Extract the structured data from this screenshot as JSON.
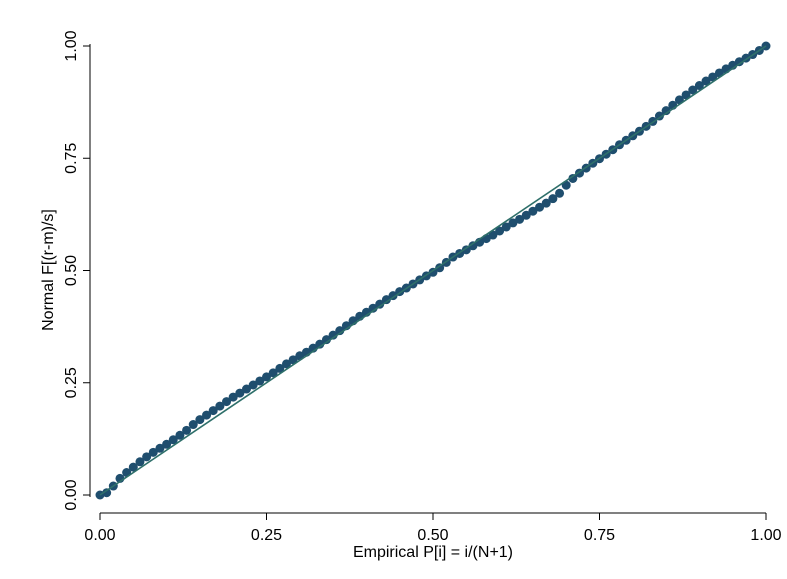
{
  "chart_data": {
    "type": "scatter",
    "title": "",
    "xlabel": "Empirical P[i] = i/(N+1)",
    "ylabel": "Normal F[(r-m)/s]",
    "xlim": [
      0,
      1
    ],
    "ylim": [
      0,
      1
    ],
    "x_ticks": [
      0,
      0.25,
      0.5,
      0.75,
      1
    ],
    "x_tick_labels": [
      "0.00",
      "0.25",
      "0.50",
      "0.75",
      "1.00"
    ],
    "y_ticks": [
      0,
      0.25,
      0.5,
      0.75,
      1
    ],
    "y_tick_labels": [
      "0.00",
      "0.25",
      "0.50",
      "0.75",
      "1.00"
    ],
    "grid": false,
    "legend": "none",
    "reference_line": {
      "x": [
        0,
        1
      ],
      "y": [
        0,
        1
      ],
      "color": "#2e6f6a"
    },
    "series": [
      {
        "marker_color": "#1f4e6e",
        "x": [
          0.0,
          0.01,
          0.02,
          0.03,
          0.04,
          0.05,
          0.06,
          0.07,
          0.08,
          0.09,
          0.1,
          0.11,
          0.12,
          0.13,
          0.14,
          0.15,
          0.16,
          0.17,
          0.18,
          0.19,
          0.2,
          0.21,
          0.22,
          0.23,
          0.24,
          0.25,
          0.26,
          0.27,
          0.28,
          0.29,
          0.3,
          0.31,
          0.32,
          0.33,
          0.34,
          0.35,
          0.36,
          0.37,
          0.38,
          0.39,
          0.4,
          0.41,
          0.42,
          0.43,
          0.44,
          0.45,
          0.46,
          0.47,
          0.48,
          0.49,
          0.5,
          0.51,
          0.52,
          0.53,
          0.54,
          0.55,
          0.56,
          0.57,
          0.58,
          0.59,
          0.6,
          0.61,
          0.62,
          0.63,
          0.64,
          0.65,
          0.66,
          0.67,
          0.68,
          0.69,
          0.7,
          0.71,
          0.72,
          0.73,
          0.74,
          0.75,
          0.76,
          0.77,
          0.78,
          0.79,
          0.8,
          0.81,
          0.82,
          0.83,
          0.84,
          0.85,
          0.86,
          0.87,
          0.88,
          0.89,
          0.9,
          0.91,
          0.92,
          0.93,
          0.94,
          0.95,
          0.96,
          0.97,
          0.98,
          0.99,
          1.0
        ],
        "y": [
          0.0,
          0.005,
          0.02,
          0.037,
          0.05,
          0.062,
          0.074,
          0.085,
          0.095,
          0.104,
          0.113,
          0.123,
          0.133,
          0.144,
          0.157,
          0.168,
          0.178,
          0.188,
          0.198,
          0.208,
          0.218,
          0.227,
          0.236,
          0.245,
          0.254,
          0.263,
          0.272,
          0.282,
          0.292,
          0.301,
          0.31,
          0.318,
          0.327,
          0.336,
          0.346,
          0.356,
          0.366,
          0.377,
          0.388,
          0.398,
          0.407,
          0.416,
          0.425,
          0.435,
          0.444,
          0.453,
          0.461,
          0.47,
          0.479,
          0.488,
          0.496,
          0.506,
          0.518,
          0.53,
          0.538,
          0.546,
          0.555,
          0.563,
          0.571,
          0.579,
          0.588,
          0.597,
          0.606,
          0.614,
          0.623,
          0.632,
          0.641,
          0.65,
          0.66,
          0.672,
          0.69,
          0.705,
          0.717,
          0.728,
          0.739,
          0.749,
          0.759,
          0.769,
          0.78,
          0.79,
          0.8,
          0.81,
          0.821,
          0.832,
          0.844,
          0.856,
          0.868,
          0.88,
          0.891,
          0.902,
          0.912,
          0.922,
          0.931,
          0.94,
          0.949,
          0.957,
          0.965,
          0.973,
          0.981,
          0.99,
          1.0
        ]
      }
    ]
  }
}
